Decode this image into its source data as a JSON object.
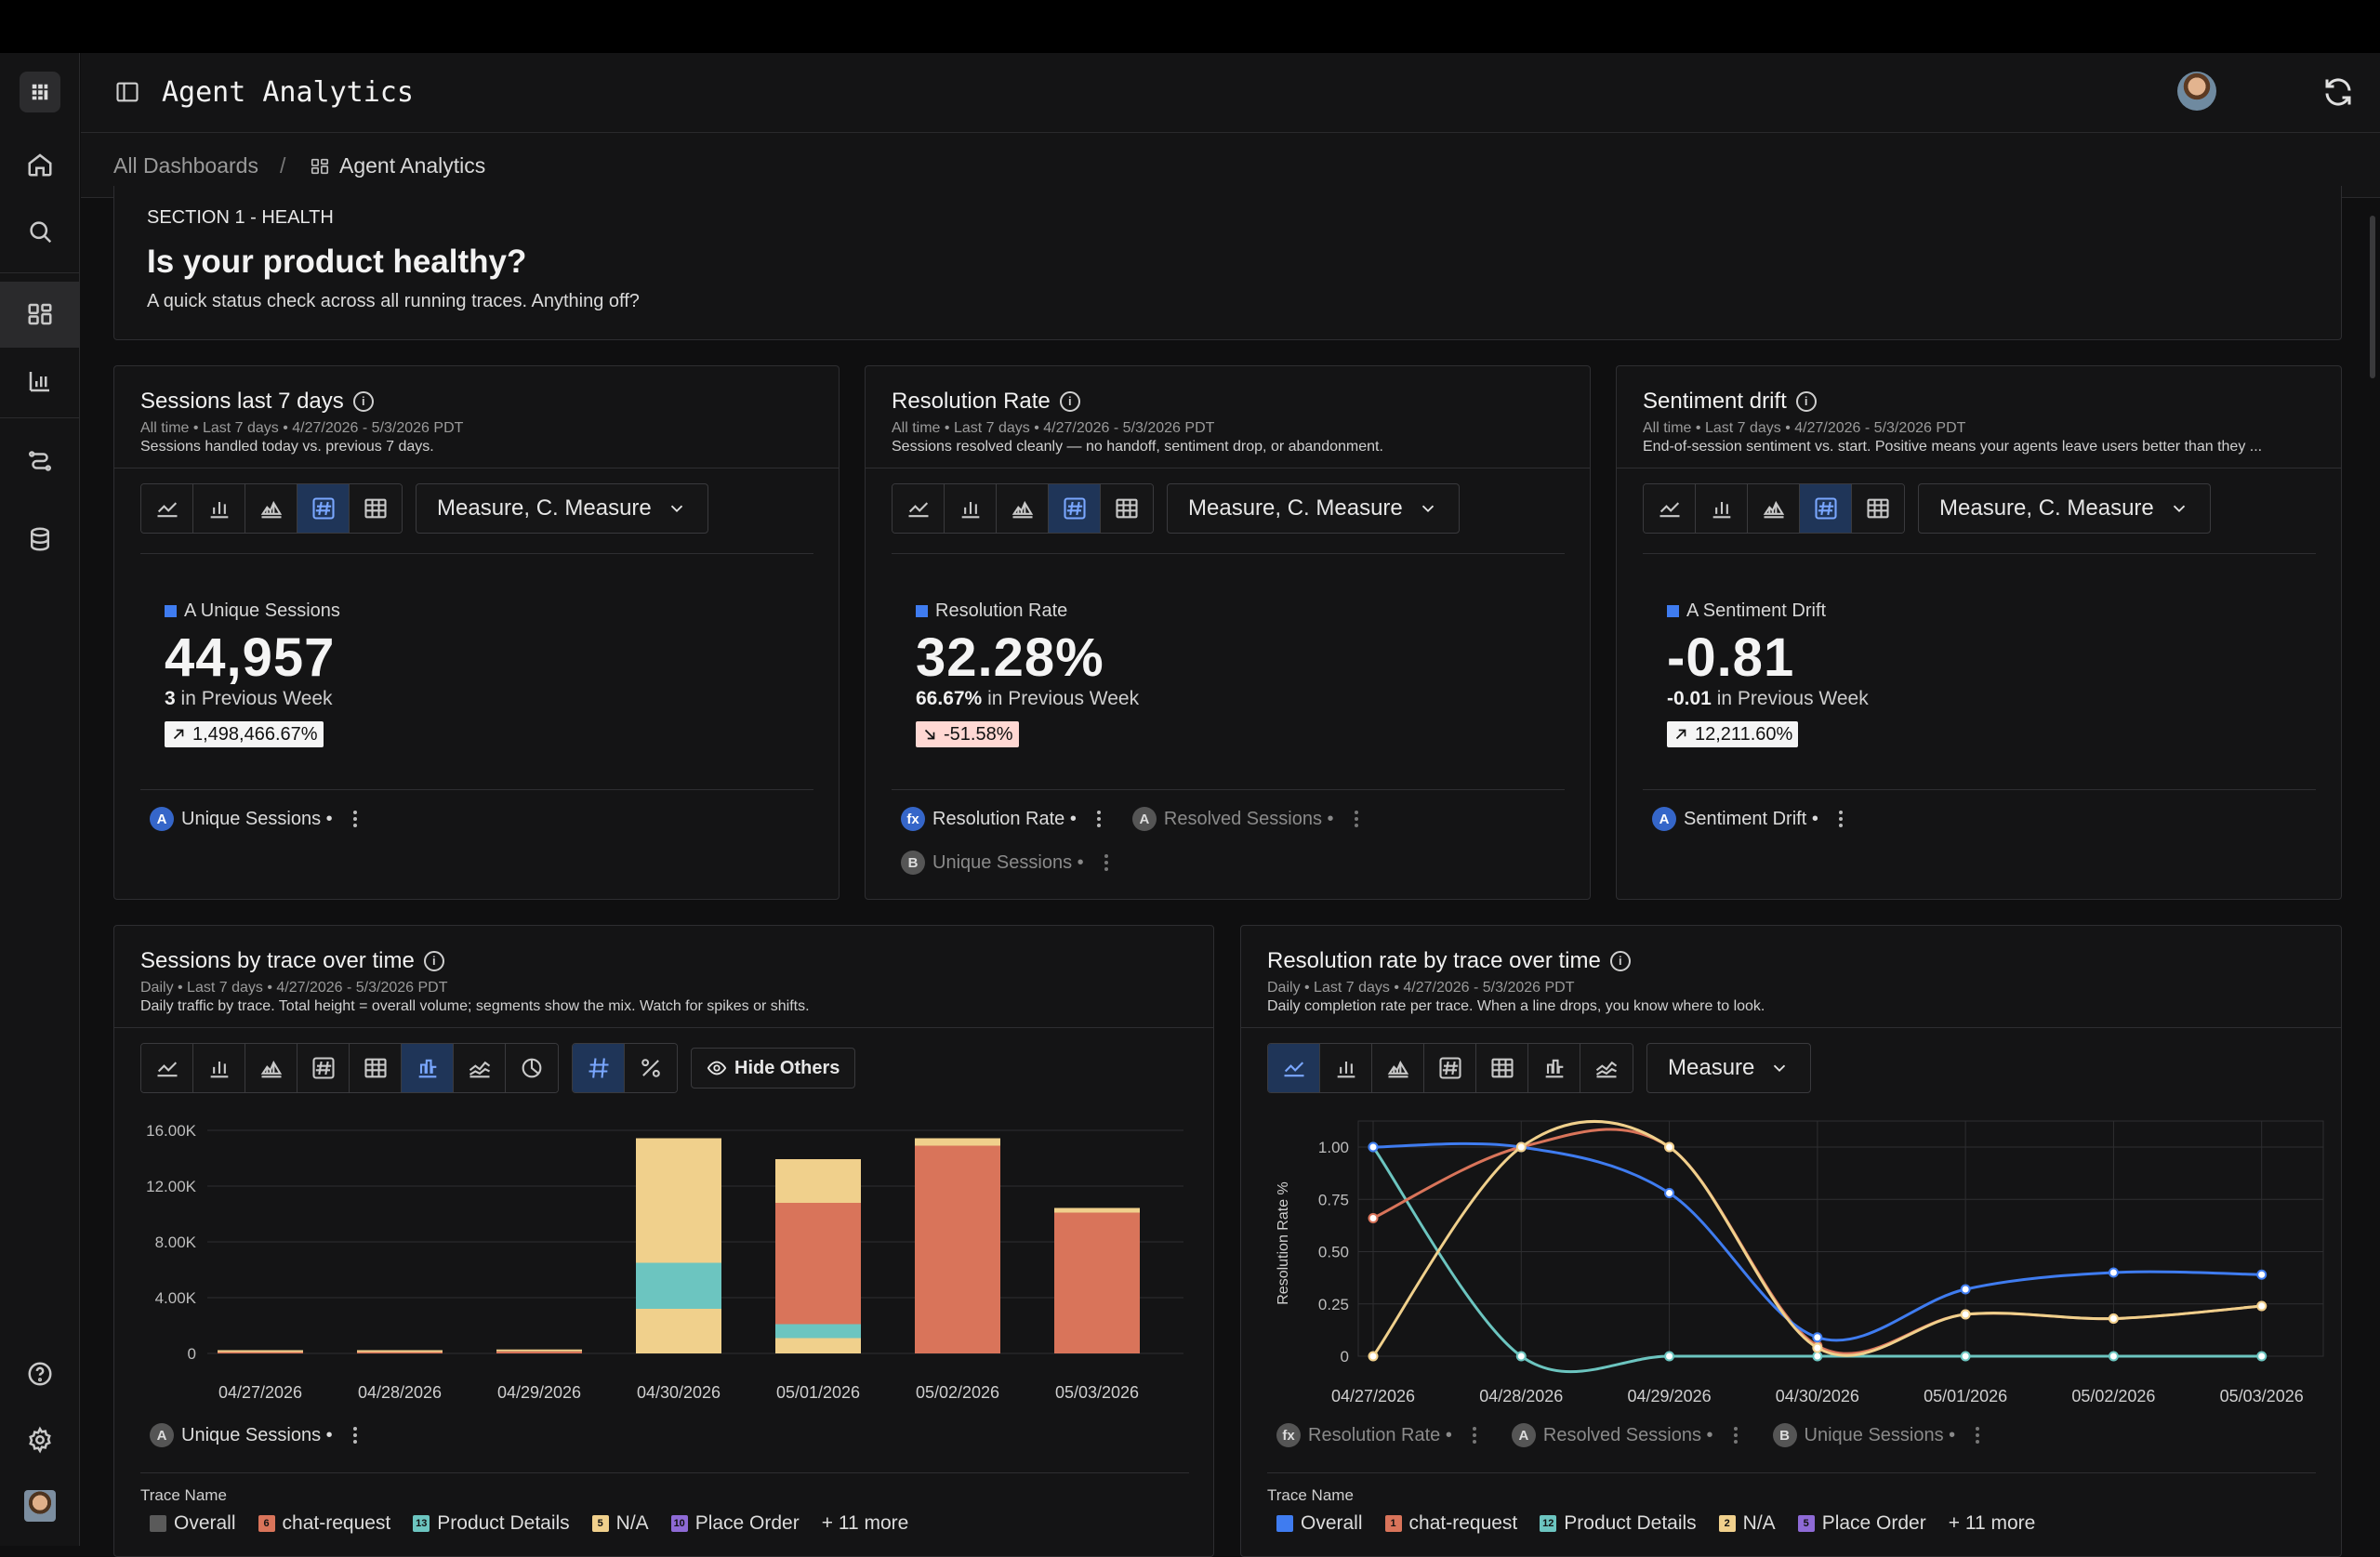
{
  "app": {
    "title": "Agent Analytics"
  },
  "breadcrumb": {
    "root": "All Dashboards",
    "separator": "/",
    "current": "Agent Analytics"
  },
  "section": {
    "kicker": "SECTION 1 - HEALTH",
    "title": "Is your product healthy?",
    "subtitle": "A quick status check across all running traces. Anything off?"
  },
  "kpis": [
    {
      "title": "Sessions last 7 days",
      "meta": "All time • Last 7 days • 4/27/2026 - 5/3/2026 PDT",
      "desc": "Sessions handled today vs. previous 7 days.",
      "measure": "Measure, C. Measure",
      "label": "A Unique Sessions",
      "value": "44,957",
      "prev_value": "3",
      "prev_text": "in Previous Week",
      "delta": "1,498,466.67%",
      "delta_direction": "up",
      "chips": [
        {
          "letter": "A",
          "label": "Unique Sessions •"
        }
      ]
    },
    {
      "title": "Resolution Rate",
      "meta": "All time • Last 7 days • 4/27/2026 - 5/3/2026 PDT",
      "desc": "Sessions resolved cleanly — no handoff, sentiment drop, or abandonment.",
      "measure": "Measure, C. Measure",
      "label": "Resolution Rate",
      "value": "32.28%",
      "prev_value": "66.67%",
      "prev_text": "in Previous Week",
      "delta": "-51.58%",
      "delta_direction": "down",
      "chips": [
        {
          "letter": "fx",
          "label": "Resolution Rate •"
        },
        {
          "letter": "A",
          "label": "Resolved Sessions •"
        },
        {
          "letter": "B",
          "label": "Unique Sessions •"
        }
      ]
    },
    {
      "title": "Sentiment drift",
      "meta": "All time • Last 7 days • 4/27/2026 - 5/3/2026 PDT",
      "desc": "End-of-session sentiment vs. start. Positive means your agents leave users better than they ...",
      "measure": "Measure, C. Measure",
      "label": "A Sentiment Drift",
      "value": "-0.81",
      "prev_value": "-0.01",
      "prev_text": "in Previous Week",
      "delta": "12,211.60%",
      "delta_direction": "up",
      "chips": [
        {
          "letter": "A",
          "label": "Sentiment Drift •"
        }
      ]
    }
  ],
  "bar_card": {
    "title": "Sessions by trace over time",
    "meta": "Daily • Last 7 days • 4/27/2026 - 5/3/2026 PDT",
    "desc": "Daily traffic by trace. Total height = overall volume; segments show the mix. Watch for spikes or shifts.",
    "hide_others": "Hide Others",
    "chip": {
      "letter": "A",
      "label": "Unique Sessions •"
    },
    "legend_title": "Trace Name",
    "legend": [
      {
        "num": "",
        "label": "Overall",
        "color": "#5a5a5a"
      },
      {
        "num": "6",
        "label": "chat-request",
        "color": "#d9745a"
      },
      {
        "num": "13",
        "label": "Product Details",
        "color": "#6cc5c0"
      },
      {
        "num": "5",
        "label": "N/A",
        "color": "#f0d08c"
      },
      {
        "num": "10",
        "label": "Place Order",
        "color": "#8e6ad6"
      }
    ],
    "legend_more": "+ 11 more"
  },
  "line_card": {
    "title": "Resolution rate by trace over time",
    "meta": "Daily • Last 7 days • 4/27/2026 - 5/3/2026 PDT",
    "desc": "Daily completion rate per trace. When a line drops, you know where to look.",
    "measure": "Measure",
    "chips": [
      {
        "letter": "fx",
        "label": "Resolution Rate •"
      },
      {
        "letter": "A",
        "label": "Resolved Sessions •"
      },
      {
        "letter": "B",
        "label": "Unique Sessions •"
      }
    ],
    "legend_title": "Trace Name",
    "legend": [
      {
        "num": "",
        "label": "Overall",
        "color": "#3f7cf0"
      },
      {
        "num": "1",
        "label": "chat-request",
        "color": "#d9745a"
      },
      {
        "num": "12",
        "label": "Product Details",
        "color": "#6cc5c0"
      },
      {
        "num": "2",
        "label": "N/A",
        "color": "#f0d08c"
      },
      {
        "num": "5",
        "label": "Place Order",
        "color": "#8e6ad6"
      }
    ],
    "legend_more": "+ 11 more"
  },
  "chart_data": [
    {
      "type": "bar",
      "stacked": true,
      "categories": [
        "04/27/2026",
        "04/28/2026",
        "04/29/2026",
        "04/30/2026",
        "05/01/2026",
        "05/02/2026",
        "05/03/2026"
      ],
      "y_ticks": [
        "0",
        "4.00K",
        "8.00K",
        "12.00K",
        "16.00K"
      ],
      "ylim": [
        0,
        16000
      ],
      "grid": true,
      "series": [
        {
          "name": "N/A",
          "color": "#f0d08c",
          "values": [
            0,
            0,
            0,
            3200,
            1100,
            0,
            0
          ]
        },
        {
          "name": "Product Details",
          "color": "#6cc5c0",
          "values": [
            0,
            0,
            0,
            3300,
            1000,
            0,
            0
          ]
        },
        {
          "name": "chat-request",
          "color": "#d9745a",
          "values": [
            100,
            100,
            150,
            0,
            8700,
            14900,
            10100
          ]
        },
        {
          "name": "N/A",
          "color": "#f0d08c",
          "values": [
            0,
            0,
            0,
            8800,
            3000,
            400,
            200
          ]
        }
      ]
    },
    {
      "type": "line",
      "ylabel": "Resolution Rate %",
      "x": [
        "04/27/2026",
        "04/28/2026",
        "04/29/2026",
        "04/30/2026",
        "05/01/2026",
        "05/02/2026",
        "05/03/2026"
      ],
      "y_ticks": [
        "0",
        "0.25",
        "0.50",
        "0.75",
        "1.00"
      ],
      "ylim": [
        0,
        1.08
      ],
      "grid": true,
      "series": [
        {
          "name": "Overall",
          "color": "#3f7cf0",
          "values": [
            1.0,
            1.0,
            0.78,
            0.09,
            0.32,
            0.4,
            0.39
          ]
        },
        {
          "name": "chat-request",
          "color": "#d9745a",
          "values": [
            0.66,
            1.0,
            1.0,
            0.05,
            0.2,
            0.18,
            0.24
          ]
        },
        {
          "name": "Product Details",
          "color": "#6cc5c0",
          "values": [
            1.0,
            0.0,
            0.0,
            0.0,
            0.0,
            0.0,
            0.0
          ]
        },
        {
          "name": "N/A",
          "color": "#f0d08c",
          "values": [
            0.0,
            1.0,
            1.0,
            0.04,
            0.2,
            0.18,
            0.24
          ]
        }
      ]
    }
  ]
}
